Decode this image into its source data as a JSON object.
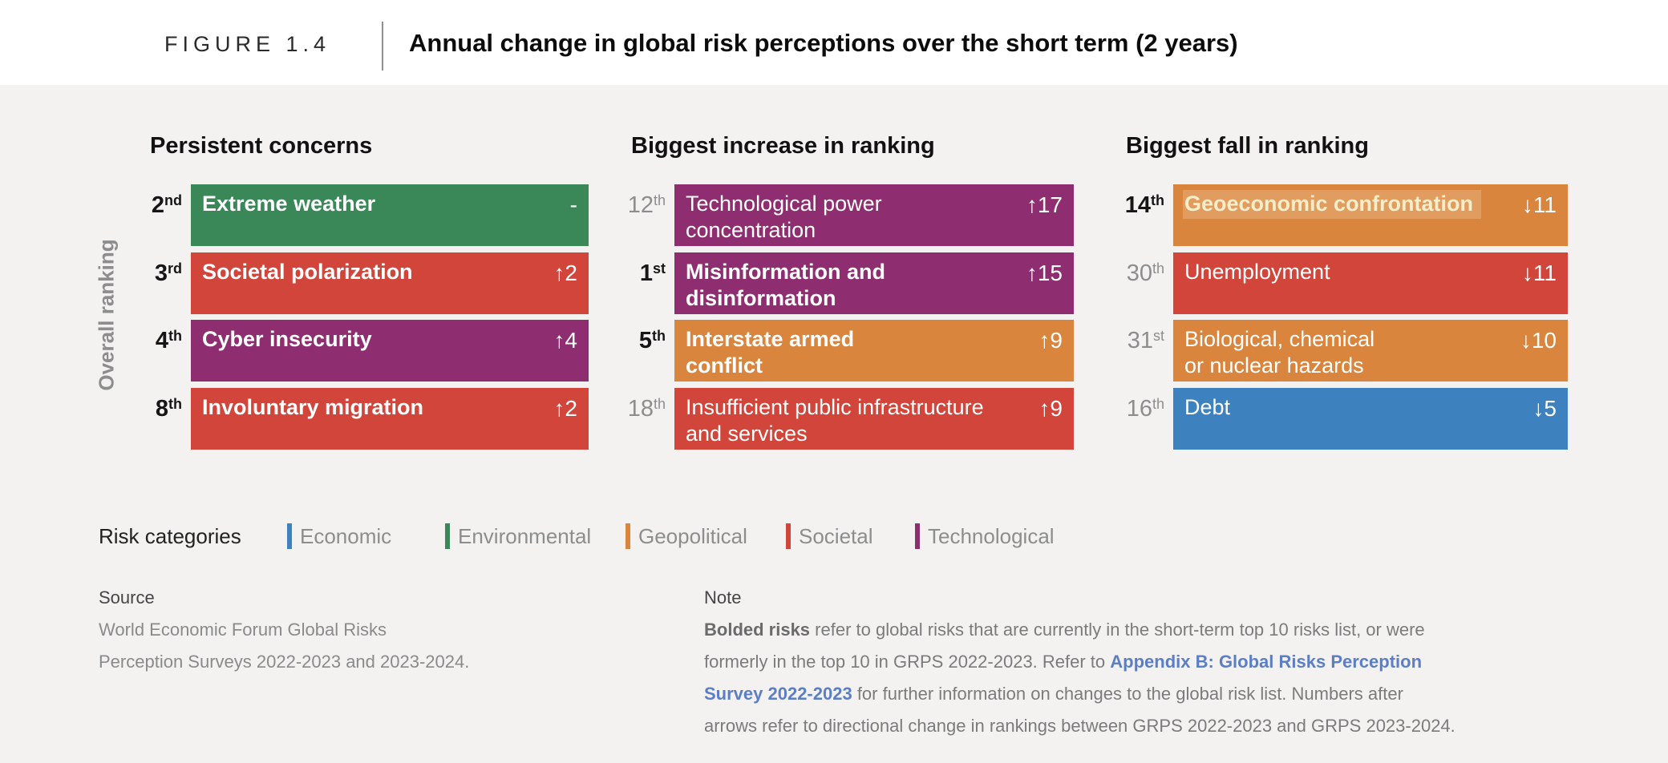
{
  "header": {
    "figure_label": "FIGURE 1.4",
    "title": "Annual change in global risk perceptions over the short term (2 years)"
  },
  "colors": {
    "economic": "#3e81bf",
    "environmental": "#3a8757",
    "geopolitical": "#d9853e",
    "societal": "#d2453a",
    "technological": "#8e2d6f",
    "background": "#f3f2f1",
    "header_background": "#ffffff",
    "link": "#5b7ec5"
  },
  "chart_data": {
    "type": "table",
    "title": "Annual change in global risk perceptions over the short term (2 years)",
    "ylabel": "Overall ranking",
    "legend": [
      "Economic",
      "Environmental",
      "Geopolitical",
      "Societal",
      "Technological"
    ],
    "panels": [
      {
        "title": "Persistent concerns",
        "rows": [
          {
            "rank": "2nd",
            "risk": "Extreme weather",
            "risk_display": [
              "Extreme weather"
            ],
            "category": "Environmental",
            "change": 0,
            "change_label": "-",
            "bold": true,
            "highlighted": false
          },
          {
            "rank": "3rd",
            "risk": "Societal polarization",
            "risk_display": [
              "Societal polarization"
            ],
            "category": "Societal",
            "change": 2,
            "change_label": "↑2",
            "bold": true,
            "highlighted": false
          },
          {
            "rank": "4th",
            "risk": "Cyber insecurity",
            "risk_display": [
              "Cyber insecurity"
            ],
            "category": "Technological",
            "change": 4,
            "change_label": "↑4",
            "bold": true,
            "highlighted": false
          },
          {
            "rank": "8th",
            "risk": "Involuntary migration",
            "risk_display": [
              "Involuntary migration"
            ],
            "category": "Societal",
            "change": 2,
            "change_label": "↑2",
            "bold": true,
            "highlighted": false
          }
        ]
      },
      {
        "title": "Biggest increase in ranking",
        "rows": [
          {
            "rank": "12th",
            "risk": "Technological power concentration",
            "risk_display": [
              "Technological power",
              "concentration"
            ],
            "category": "Technological",
            "change": 17,
            "change_label": "↑17",
            "bold": false,
            "highlighted": false
          },
          {
            "rank": "1st",
            "risk": "Misinformation and disinformation",
            "risk_display": [
              "Misinformation and",
              "disinformation"
            ],
            "category": "Technological",
            "change": 15,
            "change_label": "↑15",
            "bold": true,
            "highlighted": false
          },
          {
            "rank": "5th",
            "risk": "Interstate armed conflict",
            "risk_display": [
              "Interstate armed",
              "conflict"
            ],
            "category": "Geopolitical",
            "change": 9,
            "change_label": "↑9",
            "bold": true,
            "highlighted": false
          },
          {
            "rank": "18th",
            "risk": "Insufficient public infrastructure and services",
            "risk_display": [
              "Insufficient public infrastructure",
              "and services"
            ],
            "category": "Societal",
            "change": 9,
            "change_label": "↑9",
            "bold": false,
            "highlighted": false
          }
        ]
      },
      {
        "title": "Biggest fall in ranking",
        "rows": [
          {
            "rank": "14th",
            "risk": "Geoeconomic confrontation",
            "risk_display": [
              "Geoeconomic confrontation"
            ],
            "category": "Geopolitical",
            "change": -11,
            "change_label": "↓11",
            "bold": true,
            "highlighted": true
          },
          {
            "rank": "30th",
            "risk": "Unemployment",
            "risk_display": [
              "Unemployment"
            ],
            "category": "Societal",
            "change": -11,
            "change_label": "↓11",
            "bold": false,
            "highlighted": false
          },
          {
            "rank": "31st",
            "risk": "Biological, chemical or nuclear hazards",
            "risk_display": [
              "Biological, chemical",
              "or nuclear hazards"
            ],
            "category": "Geopolitical",
            "change": -10,
            "change_label": "↓10",
            "bold": false,
            "highlighted": false
          },
          {
            "rank": "16th",
            "risk": "Debt",
            "risk_display": [
              "Debt"
            ],
            "category": "Economic",
            "change": -5,
            "change_label": "↓5",
            "bold": false,
            "highlighted": false
          }
        ]
      }
    ]
  },
  "legend": {
    "title": "Risk categories",
    "items": [
      {
        "label": "Economic",
        "category": "economic"
      },
      {
        "label": "Environmental",
        "category": "environmental"
      },
      {
        "label": "Geopolitical",
        "category": "geopolitical"
      },
      {
        "label": "Societal",
        "category": "societal"
      },
      {
        "label": "Technological",
        "category": "technological"
      }
    ]
  },
  "source": {
    "heading": "Source",
    "text": "World Economic Forum Global Risks\nPerception Surveys 2022-2023 and 2023-2024."
  },
  "note": {
    "heading": "Note",
    "segments": [
      {
        "text": "Bolded risks",
        "style": "bold"
      },
      {
        "text": " refer to global risks that are currently in the short-term top 10 risks list, or were\nformerly in the top 10 in GRPS 2022-2023. Refer to ",
        "style": "normal"
      },
      {
        "text": "Appendix B: Global Risks Perception\nSurvey 2022-2023",
        "style": "link"
      },
      {
        "text": " for further information on changes to the global risk list. Numbers after\narrows refer to directional change in rankings between GRPS 2022-2023 and GRPS 2023-2024.",
        "style": "normal"
      }
    ]
  }
}
